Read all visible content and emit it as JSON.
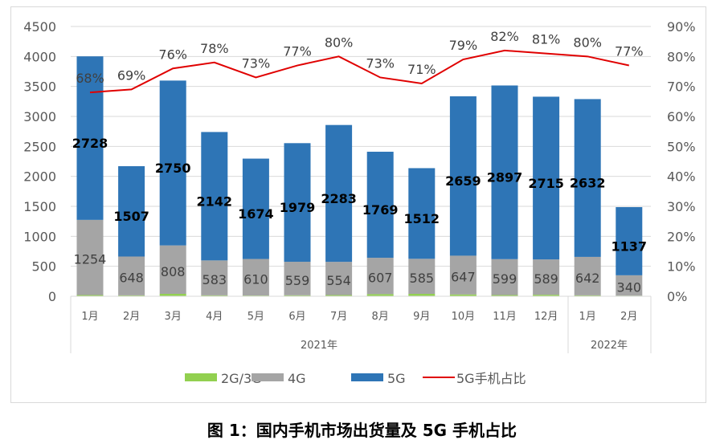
{
  "chart_data": {
    "type": "bar",
    "stacked": true,
    "title": "图 1：国内手机市场出货量及 5G 手机占比",
    "categories": [
      "1月",
      "2月",
      "3月",
      "4月",
      "5月",
      "6月",
      "7月",
      "8月",
      "9月",
      "10月",
      "11月",
      "12月",
      "1月",
      "2月"
    ],
    "groups": [
      {
        "label": "2021年",
        "span": 12
      },
      {
        "label": "2022年",
        "span": 2
      }
    ],
    "series": [
      {
        "name": "2G/3G",
        "color": "#92d050",
        "values": [
          20,
          15,
          40,
          15,
          12,
          16,
          20,
          35,
          40,
          30,
          20,
          25,
          15,
          10
        ]
      },
      {
        "name": "4G",
        "color": "#a5a5a5",
        "values": [
          1254,
          648,
          808,
          583,
          610,
          559,
          554,
          607,
          585,
          647,
          599,
          589,
          642,
          340
        ]
      },
      {
        "name": "5G",
        "color": "#2e75b6",
        "values": [
          2728,
          1507,
          2750,
          2142,
          1674,
          1979,
          2283,
          1769,
          1512,
          2659,
          2897,
          2715,
          2632,
          1137
        ]
      },
      {
        "name": "5G手机占比",
        "type": "line",
        "axis": "right",
        "color": "#e00000",
        "values": [
          68,
          69,
          76,
          78,
          73,
          77,
          80,
          73,
          71,
          79,
          82,
          81,
          80,
          77
        ]
      }
    ],
    "ylim": [
      0,
      4500
    ],
    "yticks": [
      0,
      500,
      1000,
      1500,
      2000,
      2500,
      3000,
      3500,
      4000,
      4500
    ],
    "y2lim": [
      0,
      90
    ],
    "y2ticks": [
      "0%",
      "10%",
      "20%",
      "30%",
      "40%",
      "50%",
      "60%",
      "70%",
      "80%",
      "90%"
    ],
    "legend": [
      "2G/3G",
      "4G",
      "5G",
      "5G手机占比"
    ],
    "legend_position": "bottom",
    "grid": true
  }
}
